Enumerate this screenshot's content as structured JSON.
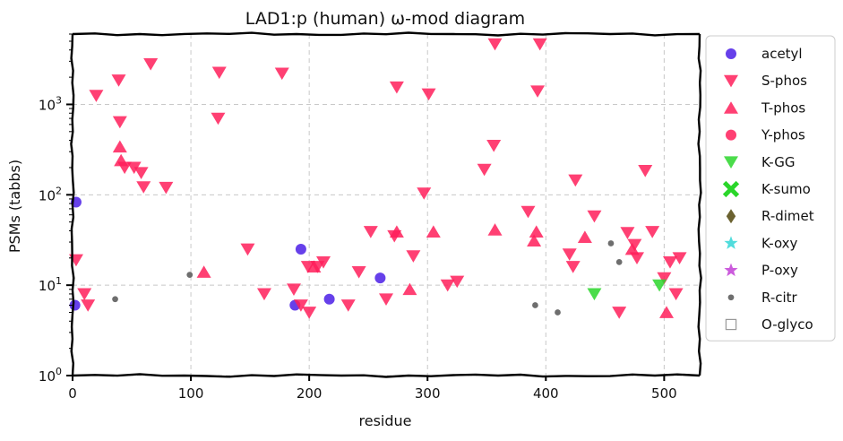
{
  "chart_data": {
    "type": "scatter",
    "title": "LAD1:p (human) ω-mod diagram",
    "xlabel": "residue",
    "ylabel": "PSMs (tabbs)",
    "xlim": [
      0,
      530
    ],
    "ylim": [
      1,
      6000
    ],
    "yscale": "log",
    "grid": true,
    "legend_position": "outside-right",
    "x_ticks": [
      {
        "value": 0,
        "label": "0"
      },
      {
        "value": 100,
        "label": "100"
      },
      {
        "value": 200,
        "label": "200"
      },
      {
        "value": 300,
        "label": "300"
      },
      {
        "value": 400,
        "label": "400"
      },
      {
        "value": 500,
        "label": "500"
      }
    ],
    "y_ticks": [
      {
        "value": 1,
        "base": "10",
        "exp": "0"
      },
      {
        "value": 10,
        "base": "10",
        "exp": "1"
      },
      {
        "value": 100,
        "base": "10",
        "exp": "2"
      },
      {
        "value": 1000,
        "base": "10",
        "exp": "3"
      }
    ],
    "series": [
      {
        "name": "acetyl",
        "marker": "circle",
        "color": "#4b1ee6",
        "points": [
          [
            2,
            6
          ],
          [
            3,
            83
          ],
          [
            188,
            6
          ],
          [
            193,
            25
          ],
          [
            217,
            7
          ],
          [
            260,
            12
          ]
        ]
      },
      {
        "name": "S-phos",
        "marker": "triangle-down",
        "color": "#ff1f5b",
        "points": [
          [
            3,
            19
          ],
          [
            10,
            8
          ],
          [
            13,
            6
          ],
          [
            20,
            1250
          ],
          [
            39,
            1850
          ],
          [
            40,
            640
          ],
          [
            44,
            200
          ],
          [
            52,
            200
          ],
          [
            58,
            175
          ],
          [
            60,
            122
          ],
          [
            66,
            2800
          ],
          [
            79,
            120
          ],
          [
            123,
            700
          ],
          [
            124,
            2250
          ],
          [
            148,
            25
          ],
          [
            162,
            8
          ],
          [
            177,
            2200
          ],
          [
            187,
            9
          ],
          [
            193,
            6
          ],
          [
            199,
            16
          ],
          [
            200,
            5
          ],
          [
            207,
            16
          ],
          [
            212,
            18
          ],
          [
            233,
            6
          ],
          [
            242,
            14
          ],
          [
            252,
            39
          ],
          [
            265,
            7
          ],
          [
            272,
            35
          ],
          [
            274,
            1550
          ],
          [
            288,
            21
          ],
          [
            297,
            104
          ],
          [
            301,
            1300
          ],
          [
            317,
            10
          ],
          [
            325,
            11
          ],
          [
            348,
            190
          ],
          [
            356,
            350
          ],
          [
            357,
            4650
          ],
          [
            385,
            65
          ],
          [
            393,
            1400
          ],
          [
            395,
            4650
          ],
          [
            420,
            22
          ],
          [
            423,
            16
          ],
          [
            425,
            145
          ],
          [
            441,
            58
          ],
          [
            462,
            5
          ],
          [
            469,
            38
          ],
          [
            475,
            28
          ],
          [
            477,
            20
          ],
          [
            484,
            185
          ],
          [
            490,
            39
          ],
          [
            500,
            12
          ],
          [
            505,
            18
          ],
          [
            510,
            8
          ],
          [
            513,
            20
          ]
        ]
      },
      {
        "name": "T-phos",
        "marker": "triangle-up",
        "color": "#ff1f5b",
        "points": [
          [
            40,
            340
          ],
          [
            41,
            240
          ],
          [
            111,
            14
          ],
          [
            204,
            16
          ],
          [
            274,
            39
          ],
          [
            285,
            9
          ],
          [
            305,
            39
          ],
          [
            357,
            41
          ],
          [
            390,
            31
          ],
          [
            392,
            39
          ],
          [
            433,
            34
          ],
          [
            473,
            25
          ],
          [
            502,
            5
          ]
        ]
      },
      {
        "name": "Y-phos",
        "marker": "circle",
        "color": "#ff1f5b",
        "points": []
      },
      {
        "name": "K-GG",
        "marker": "triangle-down",
        "color": "#2bd62b",
        "points": [
          [
            441,
            8
          ],
          [
            496,
            10
          ]
        ]
      },
      {
        "name": "K-sumo",
        "marker": "x-thick",
        "color": "#2bd62b",
        "points": []
      },
      {
        "name": "R-dimet",
        "marker": "diamond",
        "color": "#6b6230",
        "points": []
      },
      {
        "name": "K-oxy",
        "marker": "star",
        "color": "#33d6d6",
        "points": []
      },
      {
        "name": "P-oxy",
        "marker": "star",
        "color": "#c23ed6",
        "points": []
      },
      {
        "name": "R-citr",
        "marker": "dot",
        "color": "#555555",
        "points": [
          [
            36,
            7
          ],
          [
            99,
            13
          ],
          [
            391,
            6
          ],
          [
            410,
            5
          ],
          [
            455,
            29
          ],
          [
            462,
            18
          ]
        ]
      },
      {
        "name": "O-glyco",
        "marker": "square-open",
        "color": "#999999",
        "points": []
      }
    ]
  }
}
